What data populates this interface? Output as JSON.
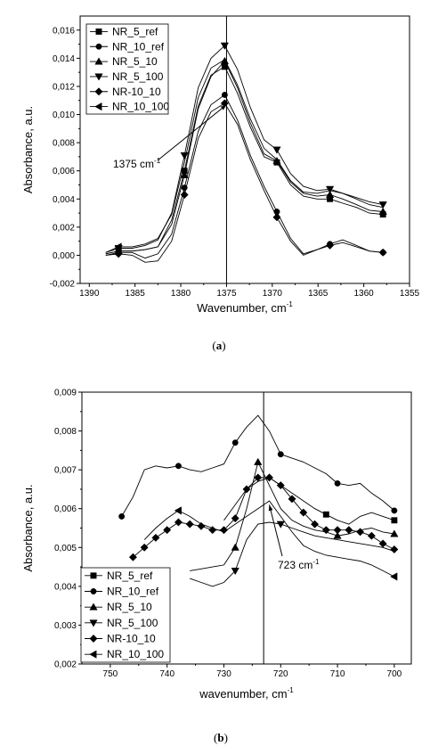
{
  "chart_data": [
    {
      "type": "line",
      "panel_label": "(a)",
      "panel_letter": "a",
      "xlabel": "Wavenumber, cm",
      "xlabel_sup": "-1",
      "ylabel": "Absorbance, a.u.",
      "xlim": [
        1391,
        1355
      ],
      "ylim": [
        -0.002,
        0.017
      ],
      "x_ticks": [
        1390,
        1385,
        1380,
        1375,
        1370,
        1365,
        1360,
        1355
      ],
      "x_tick_labels": [
        "1390",
        "1385",
        "1380",
        "1375",
        "1370",
        "1365",
        "1360",
        "1355"
      ],
      "y_ticks": [
        -0.002,
        0.0,
        0.002,
        0.004,
        0.006,
        0.008,
        0.01,
        0.012,
        0.014,
        0.016
      ],
      "y_tick_labels": [
        "-0,002",
        "0,000",
        "0,002",
        "0,004",
        "0,006",
        "0,008",
        "0,010",
        "0,012",
        "0,014",
        "0,016"
      ],
      "vline_x": 1375,
      "annotation": {
        "text": "1375 cm",
        "sup": "-1",
        "target": [
          1375,
          0.0107
        ]
      },
      "legend_position": "top-left",
      "x": [
        1388.2,
        1386.8,
        1385.3,
        1383.9,
        1382.5,
        1381.0,
        1379.6,
        1378.1,
        1376.7,
        1375.2,
        1373.8,
        1372.4,
        1370.9,
        1369.5,
        1368.0,
        1366.6,
        1365.1,
        1363.7,
        1362.3,
        1360.8,
        1359.4,
        1357.9
      ],
      "series": [
        {
          "name": "NR_5_ref",
          "marker": "square",
          "marker_index": [
            1,
            6,
            9,
            13,
            17,
            21
          ],
          "values": [
            0.0001,
            0.0003,
            0.0003,
            0.0004,
            0.0006,
            0.0025,
            0.006,
            0.0106,
            0.0128,
            0.0134,
            0.0115,
            0.0091,
            0.007,
            0.0066,
            0.005,
            0.0042,
            0.004,
            0.004,
            0.0037,
            0.0034,
            0.003,
            0.0029
          ]
        },
        {
          "name": "NR_10_ref",
          "marker": "circle",
          "marker_index": [
            1,
            6,
            9,
            13,
            17,
            21
          ],
          "values": [
            0.0,
            0.0002,
            0.0002,
            -0.0002,
            0.0001,
            0.0015,
            0.0048,
            0.0088,
            0.0107,
            0.0114,
            0.0096,
            0.0071,
            0.0049,
            0.0031,
            0.0012,
            0.0001,
            0.0004,
            0.0008,
            0.0011,
            0.0007,
            0.0003,
            0.0002
          ]
        },
        {
          "name": "NR_5_10",
          "marker": "triangle-up",
          "marker_index": [
            1,
            6,
            9,
            13,
            17,
            21
          ],
          "values": [
            0.0001,
            0.0003,
            0.0003,
            0.0004,
            0.0006,
            0.0022,
            0.0057,
            0.0104,
            0.0127,
            0.0138,
            0.0119,
            0.0094,
            0.0072,
            0.0067,
            0.0052,
            0.0044,
            0.0042,
            0.0043,
            0.004,
            0.0036,
            0.0032,
            0.0031
          ]
        },
        {
          "name": "NR_5_100",
          "marker": "triangle-down",
          "marker_index": [
            1,
            6,
            9,
            13,
            17,
            21
          ],
          "values": [
            0.0002,
            0.0005,
            0.0005,
            0.0007,
            0.0011,
            0.003,
            0.0071,
            0.0119,
            0.014,
            0.0149,
            0.0132,
            0.0105,
            0.0082,
            0.0075,
            0.0058,
            0.0049,
            0.0046,
            0.0047,
            0.0044,
            0.0041,
            0.0038,
            0.0036
          ]
        },
        {
          "name": "NR-10_10",
          "marker": "diamond",
          "marker_index": [
            1,
            6,
            9,
            13,
            17,
            21
          ],
          "values": [
            0.0,
            0.0001,
            0.0,
            -0.0005,
            -0.0004,
            0.001,
            0.0043,
            0.0083,
            0.0102,
            0.0108,
            0.0093,
            0.0068,
            0.0046,
            0.0027,
            0.001,
            0.0,
            0.0004,
            0.0007,
            0.0009,
            0.0006,
            0.0003,
            0.0002
          ]
        },
        {
          "name": "NR_10_100",
          "marker": "triangle-left",
          "marker_index": [
            1
          ],
          "values": [
            0.0002,
            0.0006,
            0.0006,
            0.0008,
            0.0012,
            0.0029,
            0.0066,
            0.0112,
            0.0133,
            0.0139,
            0.0121,
            0.0097,
            0.0076,
            0.0068,
            0.0053,
            0.0045,
            0.0044,
            0.0046,
            0.0044,
            0.004,
            0.0036,
            0.0034
          ]
        }
      ]
    },
    {
      "type": "line",
      "panel_label": "(b)",
      "panel_letter": "b",
      "xlabel": "wavenumber, cm",
      "xlabel_sup": "-1",
      "ylabel": "Absorbance, a.u.",
      "xlim": [
        755,
        697
      ],
      "ylim": [
        0.002,
        0.009
      ],
      "x_ticks": [
        750,
        740,
        730,
        720,
        710,
        700
      ],
      "x_tick_labels": [
        "750",
        "740",
        "730",
        "720",
        "710",
        "700"
      ],
      "y_ticks": [
        0.002,
        0.003,
        0.004,
        0.005,
        0.006,
        0.007,
        0.008,
        0.009
      ],
      "y_tick_labels": [
        "0,002",
        "0,003",
        "0,004",
        "0,005",
        "0,006",
        "0,007",
        "0,008",
        "0,009"
      ],
      "vline_x": 723,
      "annotation": {
        "text": "723 cm",
        "sup": "-1",
        "target": [
          722,
          0.0061
        ]
      },
      "legend_position": "bottom-left",
      "x": [
        748,
        746,
        744,
        742,
        740,
        738,
        736,
        734,
        732,
        730,
        728,
        726,
        724,
        722,
        720,
        718,
        716,
        714,
        712,
        710,
        708,
        706,
        704,
        702,
        700
      ],
      "series": [
        {
          "name": "NR_5_ref",
          "marker": "square",
          "marker_index": [
            18,
            24
          ],
          "values": [
            null,
            null,
            null,
            null,
            null,
            null,
            null,
            null,
            null,
            0.0057,
            0.0061,
            0.0065,
            0.0067,
            0.0068,
            0.0066,
            0.0064,
            0.0062,
            0.006,
            0.00585,
            0.0057,
            0.0056,
            0.0058,
            0.0059,
            0.0058,
            0.0057
          ]
        },
        {
          "name": "NR_10_ref",
          "marker": "circle",
          "marker_index": [
            0,
            5,
            10,
            14,
            19,
            24
          ],
          "values": [
            0.0058,
            0.0063,
            0.007,
            0.0071,
            0.00705,
            0.0071,
            0.007,
            0.00695,
            0.00705,
            0.00715,
            0.0077,
            0.0081,
            0.0084,
            0.008,
            0.0074,
            0.0073,
            0.0072,
            0.00705,
            0.0069,
            0.00665,
            0.0066,
            0.00665,
            0.0064,
            0.0062,
            0.00595
          ]
        },
        {
          "name": "NR_5_10",
          "marker": "triangle-up",
          "marker_index": [
            10,
            12,
            19,
            24
          ],
          "values": [
            null,
            null,
            null,
            null,
            null,
            null,
            0.0044,
            0.00445,
            0.0045,
            0.00455,
            0.005,
            0.006,
            0.0072,
            0.0066,
            0.006,
            0.0057,
            0.00555,
            0.00545,
            0.0054,
            0.0053,
            0.00535,
            0.00545,
            0.0055,
            0.0054,
            0.00535
          ]
        },
        {
          "name": "NR_5_100",
          "marker": "triangle-down",
          "marker_index": [
            10,
            14
          ],
          "values": [
            null,
            null,
            null,
            null,
            null,
            null,
            0.0042,
            0.0041,
            0.004,
            0.0041,
            0.0044,
            0.0052,
            0.0056,
            0.00565,
            0.0056,
            0.0055,
            0.0054,
            0.0053,
            0.00525,
            0.0052,
            0.00515,
            0.0051,
            0.00505,
            0.005,
            0.0049
          ]
        },
        {
          "name": "NR-10_10",
          "marker": "diamond",
          "marker_index": [
            1,
            2,
            3,
            4,
            5,
            6,
            7,
            8,
            9,
            10,
            11,
            12,
            13,
            14,
            15,
            16,
            17,
            18,
            19,
            20,
            21,
            22,
            23,
            24
          ],
          "values": [
            null,
            0.00475,
            0.005,
            0.00525,
            0.00545,
            0.00565,
            0.0056,
            0.00555,
            0.00545,
            0.00545,
            0.00575,
            0.0065,
            0.0068,
            0.0068,
            0.0066,
            0.00625,
            0.0059,
            0.0056,
            0.00545,
            0.00545,
            0.00545,
            0.0054,
            0.0053,
            0.0051,
            0.00495
          ]
        },
        {
          "name": "NR_10_100",
          "marker": "triangle-left",
          "marker_index": [
            5,
            24
          ],
          "values": [
            null,
            null,
            0.0052,
            0.0055,
            0.00575,
            0.00595,
            0.0058,
            0.0056,
            0.0055,
            0.0054,
            0.0056,
            0.0058,
            0.006,
            0.0062,
            0.0058,
            0.0054,
            0.00505,
            0.0049,
            0.0048,
            0.00475,
            0.0047,
            0.00465,
            0.00455,
            0.0044,
            0.00425
          ]
        }
      ]
    }
  ]
}
